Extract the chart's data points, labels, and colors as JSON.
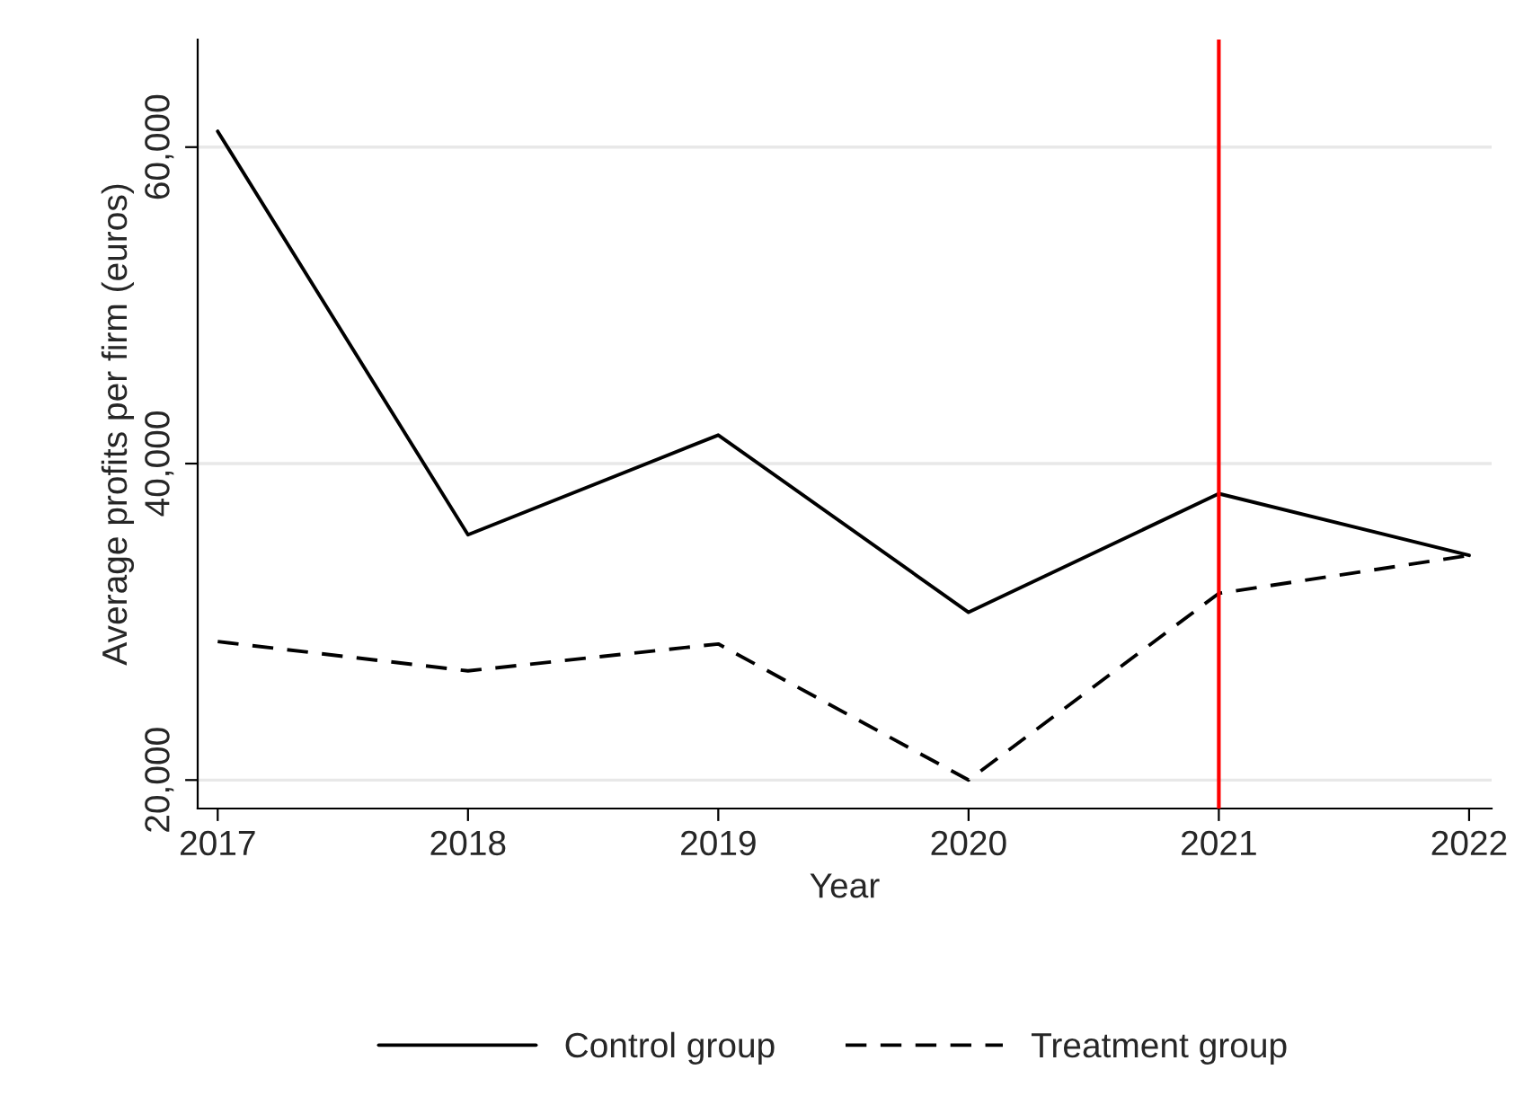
{
  "chart_data": {
    "type": "line",
    "xlabel": "Year",
    "ylabel": "Average profits per firm (euros)",
    "x": [
      2017,
      2018,
      2019,
      2020,
      2021,
      2022
    ],
    "series": [
      {
        "name": "Control group",
        "color": "#000000",
        "line_style": "solid",
        "values": [
          61000,
          35500,
          41800,
          30600,
          38100,
          34200
        ]
      },
      {
        "name": "Treatment group",
        "color": "#000000",
        "line_style": "dashed",
        "values": [
          28750,
          26900,
          28600,
          20000,
          31800,
          34200
        ]
      }
    ],
    "xlim": [
      2016.92,
      2022.09
    ],
    "xticks": [
      2017,
      2018,
      2019,
      2020,
      2021,
      2022
    ],
    "ylim": [
      18200,
      66800
    ],
    "yticks": [
      {
        "value": 20000,
        "label": "20,000"
      },
      {
        "value": 40000,
        "label": "40,000"
      },
      {
        "value": 60000,
        "label": "60,000"
      }
    ],
    "ref_lines": [
      {
        "axis": "x",
        "value": 2021,
        "color": "#ff0000",
        "line_style": "solid"
      }
    ],
    "grid": "y",
    "legend": "bottom",
    "marker": "none"
  }
}
